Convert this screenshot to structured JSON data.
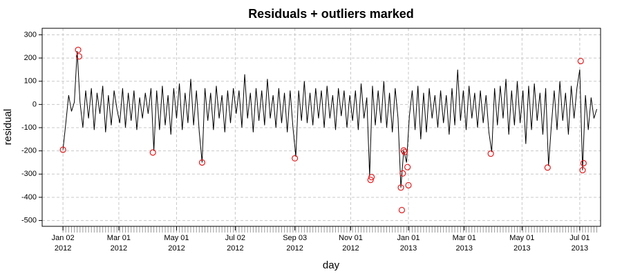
{
  "chart_data": {
    "type": "line",
    "title": "Residuals + outliers marked",
    "x_label": "day",
    "y_label": "residual",
    "xlim": [
      "2011-12-11",
      "2013-07-23"
    ],
    "ylim": [
      -525,
      328
    ],
    "xticks": [
      {
        "value": "2012-01-02",
        "label": "Jan 02\n2012"
      },
      {
        "value": "2012-03-01",
        "label": "Mar 01\n2012"
      },
      {
        "value": "2012-05-01",
        "label": "May 01\n2012"
      },
      {
        "value": "2012-07-02",
        "label": "Jul 02\n2012"
      },
      {
        "value": "2012-09-03",
        "label": "Sep 03\n2012"
      },
      {
        "value": "2012-11-01",
        "label": "Nov 01\n2012"
      },
      {
        "value": "2013-01-01",
        "label": "Jan 01\n2013"
      },
      {
        "value": "2013-03-01",
        "label": "Mar 01\n2013"
      },
      {
        "value": "2013-05-01",
        "label": "May 01\n2013"
      },
      {
        "value": "2013-07-01",
        "label": "Jul 01\n2013"
      }
    ],
    "yticks": [
      -500,
      -400,
      -300,
      -200,
      -100,
      0,
      100,
      200,
      300
    ],
    "grid": true,
    "series": [
      {
        "color": "#000000",
        "x": [
          "2012-01-02",
          "2012-01-05",
          "2012-01-08",
          "2012-01-11",
          "2012-01-14",
          "2012-01-17",
          "2012-01-20",
          "2012-01-23",
          "2012-01-26",
          "2012-01-29",
          "2012-02-01",
          "2012-02-04",
          "2012-02-07",
          "2012-02-10",
          "2012-02-13",
          "2012-02-16",
          "2012-02-19",
          "2012-02-22",
          "2012-02-25",
          "2012-02-28",
          "2012-03-02",
          "2012-03-05",
          "2012-03-08",
          "2012-03-11",
          "2012-03-14",
          "2012-03-17",
          "2012-03-20",
          "2012-03-23",
          "2012-03-26",
          "2012-03-29",
          "2012-04-01",
          "2012-04-04",
          "2012-04-07",
          "2012-04-10",
          "2012-04-13",
          "2012-04-16",
          "2012-04-19",
          "2012-04-22",
          "2012-04-25",
          "2012-04-28",
          "2012-05-01",
          "2012-05-04",
          "2012-05-07",
          "2012-05-10",
          "2012-05-13",
          "2012-05-16",
          "2012-05-19",
          "2012-05-22",
          "2012-05-25",
          "2012-05-28",
          "2012-05-31",
          "2012-06-03",
          "2012-06-06",
          "2012-06-09",
          "2012-06-12",
          "2012-06-15",
          "2012-06-18",
          "2012-06-21",
          "2012-06-24",
          "2012-06-27",
          "2012-06-30",
          "2012-07-03",
          "2012-07-06",
          "2012-07-09",
          "2012-07-12",
          "2012-07-15",
          "2012-07-18",
          "2012-07-21",
          "2012-07-24",
          "2012-07-27",
          "2012-07-30",
          "2012-08-02",
          "2012-08-05",
          "2012-08-08",
          "2012-08-11",
          "2012-08-14",
          "2012-08-17",
          "2012-08-20",
          "2012-08-23",
          "2012-08-26",
          "2012-08-29",
          "2012-09-01",
          "2012-09-04",
          "2012-09-07",
          "2012-09-10",
          "2012-09-13",
          "2012-09-16",
          "2012-09-19",
          "2012-09-22",
          "2012-09-25",
          "2012-09-28",
          "2012-10-01",
          "2012-10-04",
          "2012-10-07",
          "2012-10-10",
          "2012-10-13",
          "2012-10-16",
          "2012-10-19",
          "2012-10-22",
          "2012-10-25",
          "2012-10-28",
          "2012-10-31",
          "2012-11-03",
          "2012-11-06",
          "2012-11-09",
          "2012-11-12",
          "2012-11-15",
          "2012-11-18",
          "2012-11-21",
          "2012-11-24",
          "2012-11-27",
          "2012-11-30",
          "2012-12-03",
          "2012-12-06",
          "2012-12-09",
          "2012-12-12",
          "2012-12-15",
          "2012-12-18",
          "2012-12-21",
          "2012-12-24",
          "2012-12-27",
          "2012-12-30",
          "2013-01-02",
          "2013-01-05",
          "2013-01-08",
          "2013-01-11",
          "2013-01-14",
          "2013-01-17",
          "2013-01-20",
          "2013-01-23",
          "2013-01-26",
          "2013-01-29",
          "2013-02-01",
          "2013-02-04",
          "2013-02-07",
          "2013-02-10",
          "2013-02-13",
          "2013-02-16",
          "2013-02-19",
          "2013-02-22",
          "2013-02-25",
          "2013-02-28",
          "2013-03-03",
          "2013-03-06",
          "2013-03-09",
          "2013-03-12",
          "2013-03-15",
          "2013-03-18",
          "2013-03-21",
          "2013-03-24",
          "2013-03-27",
          "2013-03-30",
          "2013-04-02",
          "2013-04-05",
          "2013-04-08",
          "2013-04-11",
          "2013-04-14",
          "2013-04-17",
          "2013-04-20",
          "2013-04-23",
          "2013-04-26",
          "2013-04-29",
          "2013-05-02",
          "2013-05-05",
          "2013-05-08",
          "2013-05-11",
          "2013-05-14",
          "2013-05-17",
          "2013-05-20",
          "2013-05-23",
          "2013-05-26",
          "2013-05-29",
          "2013-06-01",
          "2013-06-04",
          "2013-06-07",
          "2013-06-10",
          "2013-06-13",
          "2013-06-16",
          "2013-06-19",
          "2013-06-22",
          "2013-06-25",
          "2013-06-28",
          "2013-07-01",
          "2013-07-04",
          "2013-07-07",
          "2013-07-10",
          "2013-07-13",
          "2013-07-16",
          "2013-07-19"
        ],
        "values": [
          -195,
          -80,
          40,
          -30,
          10,
          230,
          10,
          -100,
          60,
          -60,
          70,
          -110,
          50,
          -40,
          80,
          -120,
          40,
          -90,
          60,
          -20,
          -80,
          70,
          -100,
          50,
          -70,
          60,
          -110,
          30,
          -60,
          50,
          -40,
          70,
          -200,
          60,
          -110,
          80,
          -90,
          40,
          -130,
          70,
          -60,
          90,
          -110,
          50,
          -80,
          110,
          -90,
          60,
          -120,
          -250,
          70,
          -70,
          50,
          -110,
          80,
          -60,
          40,
          -120,
          60,
          -80,
          70,
          -40,
          60,
          -100,
          130,
          -60,
          50,
          -120,
          70,
          -70,
          60,
          -90,
          110,
          -60,
          40,
          -100,
          70,
          -80,
          50,
          -120,
          60,
          -100,
          -225,
          60,
          -70,
          100,
          -80,
          50,
          -90,
          70,
          -60,
          60,
          -100,
          80,
          -60,
          40,
          -110,
          70,
          -50,
          60,
          -100,
          40,
          -70,
          60,
          -110,
          90,
          -60,
          30,
          -310,
          80,
          -90,
          60,
          -80,
          100,
          -100,
          50,
          -120,
          70,
          -60,
          -358,
          -198,
          -250,
          -50,
          60,
          -110,
          80,
          -150,
          50,
          -120,
          70,
          -60,
          40,
          -100,
          60,
          -80,
          40,
          -130,
          70,
          -90,
          150,
          -70,
          60,
          -110,
          80,
          -60,
          50,
          -100,
          60,
          -80,
          40,
          -120,
          -205,
          70,
          -90,
          80,
          -60,
          110,
          -130,
          60,
          -90,
          100,
          -80,
          60,
          -170,
          80,
          -110,
          90,
          -70,
          50,
          -130,
          70,
          -265,
          -90,
          60,
          -110,
          100,
          -70,
          50,
          -130,
          80,
          -60,
          70,
          150,
          -283,
          40,
          -110,
          30,
          -60,
          -20
        ]
      },
      {
        "type": "scatter",
        "color": "#e41a1c",
        "x": [
          "2012-01-02",
          "2012-01-18",
          "2012-01-19",
          "2012-04-06",
          "2012-05-28",
          "2012-09-03",
          "2012-11-22",
          "2012-11-23",
          "2012-12-24",
          "2012-12-25",
          "2012-12-26",
          "2012-12-27",
          "2012-12-28",
          "2012-12-31",
          "2013-01-01",
          "2013-03-29",
          "2013-05-28",
          "2013-07-02",
          "2013-07-04",
          "2013-07-05"
        ],
        "values": [
          -195,
          235,
          207,
          -207,
          -250,
          -232,
          -325,
          -313,
          -358,
          -455,
          -297,
          -198,
          -205,
          -270,
          -348,
          -212,
          -272,
          187,
          -283,
          -253
        ]
      }
    ]
  }
}
